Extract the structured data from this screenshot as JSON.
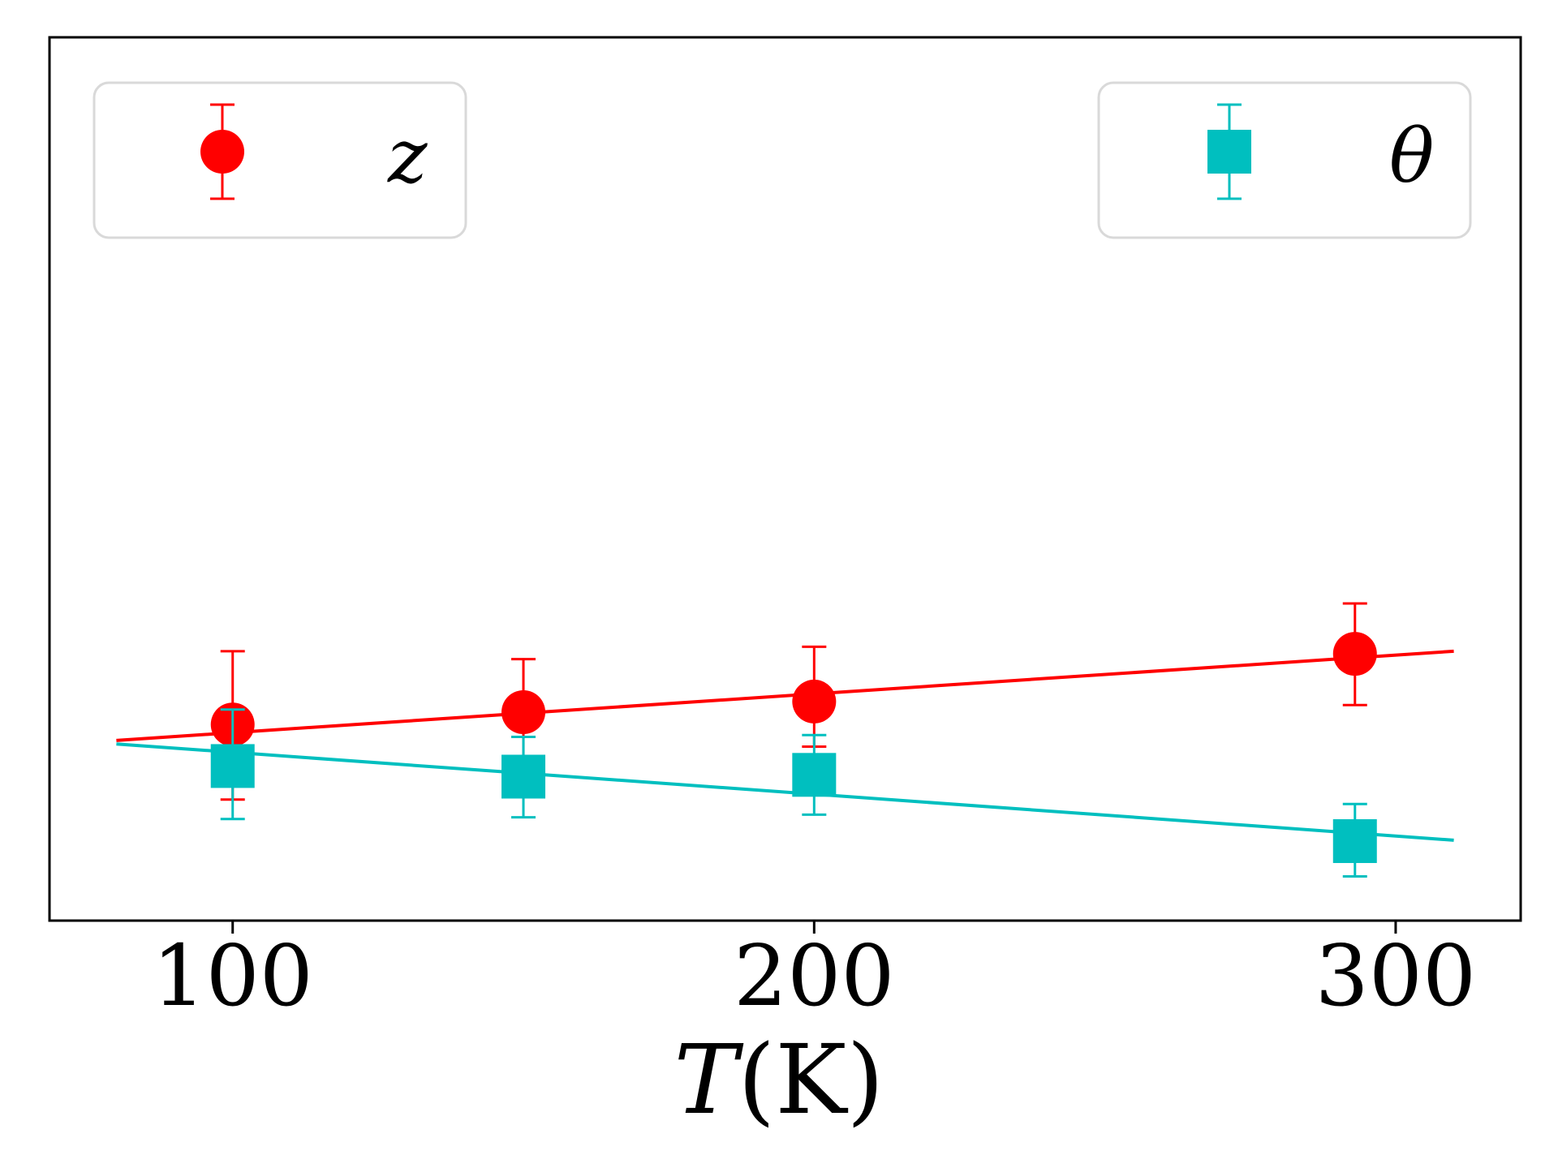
{
  "chart_data": {
    "type": "scatter",
    "xlabel_symbol": "T",
    "xlabel_unit": "(K)",
    "ylabel": "",
    "xlim": [
      68.5,
      321.5
    ],
    "ylim": [
      0.0,
      1.0
    ],
    "xticks": [
      100,
      200,
      300
    ],
    "ytick_labels_shown": false,
    "grid": false,
    "legend_placement": [
      "top-left",
      "top-right"
    ],
    "series": [
      {
        "name": "z",
        "color": "#ff0000",
        "marker": "circle",
        "points": [
          {
            "x": 100,
            "y": 0.222,
            "yerr_low": 0.137,
            "yerr_high": 0.305
          },
          {
            "x": 150,
            "y": 0.236,
            "yerr_low": 0.182,
            "yerr_high": 0.296
          },
          {
            "x": 200,
            "y": 0.248,
            "yerr_low": 0.197,
            "yerr_high": 0.31
          },
          {
            "x": 293,
            "y": 0.302,
            "yerr_low": 0.244,
            "yerr_high": 0.359
          }
        ],
        "fit": [
          [
            80,
            0.204
          ],
          [
            310,
            0.305
          ]
        ]
      },
      {
        "name": "θ",
        "color": "#00bfbf",
        "marker": "square",
        "points": [
          {
            "x": 100,
            "y": 0.175,
            "yerr_low": 0.115,
            "yerr_high": 0.239
          },
          {
            "x": 150,
            "y": 0.163,
            "yerr_low": 0.117,
            "yerr_high": 0.208
          },
          {
            "x": 200,
            "y": 0.165,
            "yerr_low": 0.12,
            "yerr_high": 0.21
          },
          {
            "x": 293,
            "y": 0.09,
            "yerr_low": 0.05,
            "yerr_high": 0.132
          }
        ],
        "fit": [
          [
            80,
            0.2
          ],
          [
            310,
            0.091
          ]
        ]
      }
    ]
  }
}
